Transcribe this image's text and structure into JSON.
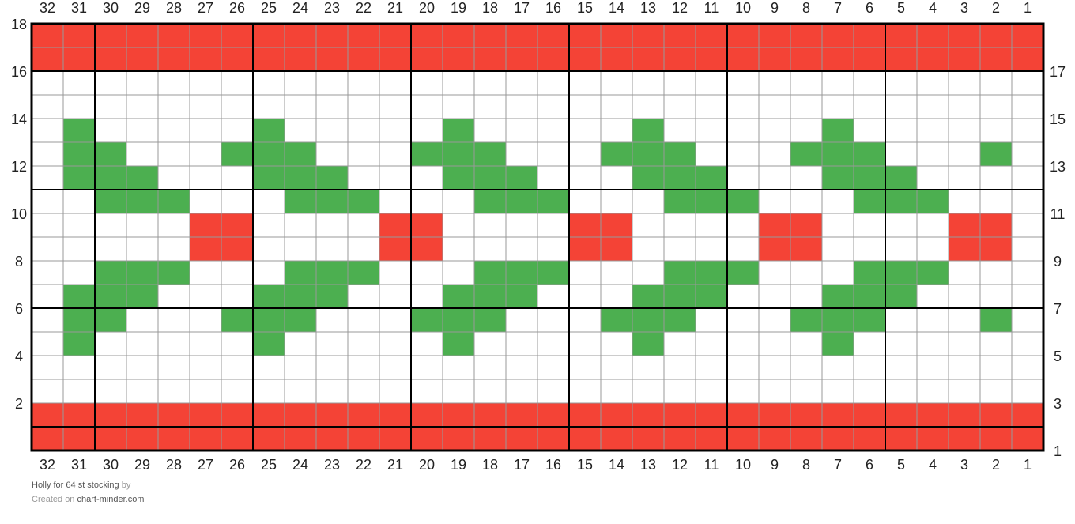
{
  "header": {
    "title": "Holly for 64 st stocking",
    "by": "by",
    "created_on": "Created on",
    "site": "chart-minder.com"
  },
  "palette": {
    "R": "#f44336",
    "G": "#4caf50",
    "W": "#ffffff"
  },
  "columns": [
    32,
    31,
    30,
    29,
    28,
    27,
    26,
    25,
    24,
    23,
    22,
    21,
    20,
    19,
    18,
    17,
    16,
    15,
    14,
    13,
    12,
    11,
    10,
    9,
    8,
    7,
    6,
    5,
    4,
    3,
    2,
    1
  ],
  "rows": [
    {
      "number": 18,
      "cells": "RRRRRRRRRRRRRRRRRRRRRRRRRRRRRRRR"
    },
    {
      "number": 17,
      "cells": "RRRRRRRRRRRRRRRRRRRRRRRRRRRRRRRR"
    },
    {
      "number": 16,
      "cells": "WWWWWWWWWWWWWWWWWWWWWWWWWWWWWWWW"
    },
    {
      "number": 15,
      "cells": "WWWWWWWWWWWWWWWWWWWWWWWWWWWWWWWW"
    },
    {
      "number": 14,
      "cells": "WGWWWWWGWWWWWGWWWWWGWWWWWGWWWWWW"
    },
    {
      "number": 13,
      "cells": "WGGWWWGGGWWWGGGWWWGGGWWWGGGWWWGW"
    },
    {
      "number": 12,
      "cells": "WGGGWWWGGGWWWGGGWWWGGGWWWGGGWWWW"
    },
    {
      "number": 11,
      "cells": "WWGGGWWWGGGWWWGGGWWWGGGWWWGGGWWW"
    },
    {
      "number": 10,
      "cells": "WWWWWRRWWWWRRWWWWRRWWWWRRWWWWRRW"
    },
    {
      "number": 9,
      "cells": "WWWWWRRWWWWRRWWWWRRWWWWRRWWWWRRW"
    },
    {
      "number": 8,
      "cells": "WWGGGWWWGGGWWWGGGWWWGGGWWWGGGWWW"
    },
    {
      "number": 7,
      "cells": "WGGGWWWGGGWWWGGGWWWGGGWWWGGGWWWW"
    },
    {
      "number": 6,
      "cells": "WGGWWWGGGWWWGGGWWWGGGWWWGGGWWWGW"
    },
    {
      "number": 5,
      "cells": "WGWWWWWGWWWWWGWWWWWGWWWWWGWWWWWW"
    },
    {
      "number": 4,
      "cells": "WWWWWWWWWWWWWWWWWWWWWWWWWWWWWWWW"
    },
    {
      "number": 3,
      "cells": "WWWWWWWWWWWWWWWWWWWWWWWWWWWWWWWW"
    },
    {
      "number": 2,
      "cells": "RRRRRRRRRRRRRRRRRRRRRRRRRRRRRRRR"
    },
    {
      "number": 1,
      "cells": "RRRRRRRRRRRRRRRRRRRRRRRRRRRRRRRR"
    }
  ]
}
